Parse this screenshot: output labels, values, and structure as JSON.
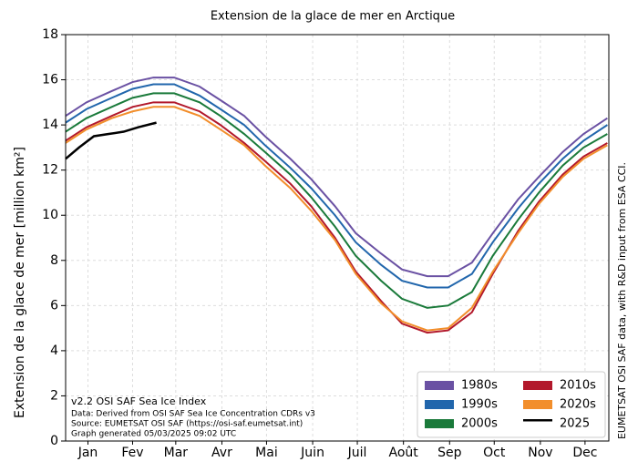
{
  "chart_data": {
    "type": "line",
    "title": "Extension de la glace de mer en Arctique",
    "y_label": "Extension de la glace de mer  [million km²]",
    "side_note": "EUMETSAT OSI SAF data, with R&D input from ESA CCI.",
    "annotations": [
      "v2.2 OSI SAF Sea Ice Index",
      "Data: Derived from OSI SAF Sea Ice Concentration CDRs v3",
      "Source: EUMETSAT OSI SAF (https://osi-saf.eumetsat.int)",
      "Graph generated 05/03/2025 09:02 UTC"
    ],
    "xlim": [
      1,
      366
    ],
    "ylim": [
      0,
      18
    ],
    "yticks": [
      0,
      2,
      4,
      6,
      8,
      10,
      12,
      14,
      16,
      18
    ],
    "xticks": [
      {
        "value": 16,
        "label": "Jan"
      },
      {
        "value": 46,
        "label": "Fev"
      },
      {
        "value": 75,
        "label": "Mar"
      },
      {
        "value": 106,
        "label": "Avr"
      },
      {
        "value": 136,
        "label": "Mai"
      },
      {
        "value": 167,
        "label": "Juin"
      },
      {
        "value": 197,
        "label": "Juil"
      },
      {
        "value": 228,
        "label": "Août"
      },
      {
        "value": 259,
        "label": "Sep"
      },
      {
        "value": 289,
        "label": "Oct"
      },
      {
        "value": 320,
        "label": "Nov"
      },
      {
        "value": 350,
        "label": "Dec"
      }
    ],
    "grid": true,
    "legend": "lower right",
    "series": [
      {
        "name": "1980s",
        "color": "#6a51a3",
        "x": [
          1,
          15,
          32,
          46,
          60,
          74,
          91,
          105,
          121,
          135,
          152,
          166,
          182,
          196,
          213,
          227,
          244,
          258,
          274,
          288,
          305,
          319,
          335,
          349,
          365
        ],
        "values": [
          14.4,
          15.0,
          15.5,
          15.9,
          16.1,
          16.1,
          15.7,
          15.1,
          14.4,
          13.5,
          12.5,
          11.6,
          10.4,
          9.2,
          8.3,
          7.6,
          7.3,
          7.3,
          7.9,
          9.2,
          10.7,
          11.7,
          12.8,
          13.6,
          14.3
        ]
      },
      {
        "name": "1990s",
        "color": "#2166ac",
        "x": [
          1,
          15,
          32,
          46,
          60,
          74,
          91,
          105,
          121,
          135,
          152,
          166,
          182,
          196,
          213,
          227,
          244,
          258,
          274,
          288,
          305,
          319,
          335,
          349,
          365
        ],
        "values": [
          14.1,
          14.7,
          15.2,
          15.6,
          15.8,
          15.8,
          15.3,
          14.7,
          14.0,
          13.1,
          12.1,
          11.2,
          10.0,
          8.8,
          7.8,
          7.1,
          6.8,
          6.8,
          7.4,
          8.8,
          10.3,
          11.4,
          12.5,
          13.3,
          14.0
        ]
      },
      {
        "name": "2000s",
        "color": "#1a7a3a",
        "x": [
          1,
          15,
          32,
          46,
          60,
          74,
          91,
          105,
          121,
          135,
          152,
          166,
          182,
          196,
          213,
          227,
          244,
          258,
          274,
          288,
          305,
          319,
          335,
          349,
          365
        ],
        "values": [
          13.7,
          14.3,
          14.8,
          15.2,
          15.4,
          15.4,
          15.0,
          14.4,
          13.6,
          12.8,
          11.8,
          10.8,
          9.5,
          8.2,
          7.1,
          6.3,
          5.9,
          6.0,
          6.6,
          8.2,
          9.8,
          11.0,
          12.2,
          13.0,
          13.6
        ]
      },
      {
        "name": "2010s",
        "color": "#b2182b",
        "x": [
          1,
          15,
          32,
          46,
          60,
          74,
          91,
          105,
          121,
          135,
          152,
          166,
          182,
          196,
          213,
          227,
          244,
          258,
          274,
          288,
          305,
          319,
          335,
          349,
          365
        ],
        "values": [
          13.3,
          13.9,
          14.4,
          14.8,
          15.0,
          15.0,
          14.6,
          14.0,
          13.2,
          12.4,
          11.4,
          10.4,
          9.0,
          7.5,
          6.2,
          5.2,
          4.8,
          4.9,
          5.7,
          7.4,
          9.3,
          10.6,
          11.8,
          12.6,
          13.2
        ]
      },
      {
        "name": "2020s",
        "color": "#f28e2b",
        "x": [
          1,
          15,
          32,
          46,
          60,
          74,
          91,
          105,
          121,
          135,
          152,
          166,
          182,
          196,
          213,
          227,
          244,
          258,
          274,
          288,
          305,
          319,
          335,
          349,
          365
        ],
        "values": [
          13.2,
          13.8,
          14.3,
          14.6,
          14.8,
          14.8,
          14.4,
          13.8,
          13.1,
          12.2,
          11.2,
          10.2,
          8.9,
          7.4,
          6.1,
          5.3,
          4.9,
          5.0,
          5.9,
          7.5,
          9.2,
          10.5,
          11.7,
          12.5,
          13.1
        ]
      },
      {
        "name": "2025",
        "color": "#000000",
        "x": [
          1,
          10,
          20,
          30,
          40,
          50,
          62
        ],
        "values": [
          12.5,
          13.0,
          13.5,
          13.6,
          13.7,
          13.9,
          14.1
        ]
      }
    ]
  }
}
